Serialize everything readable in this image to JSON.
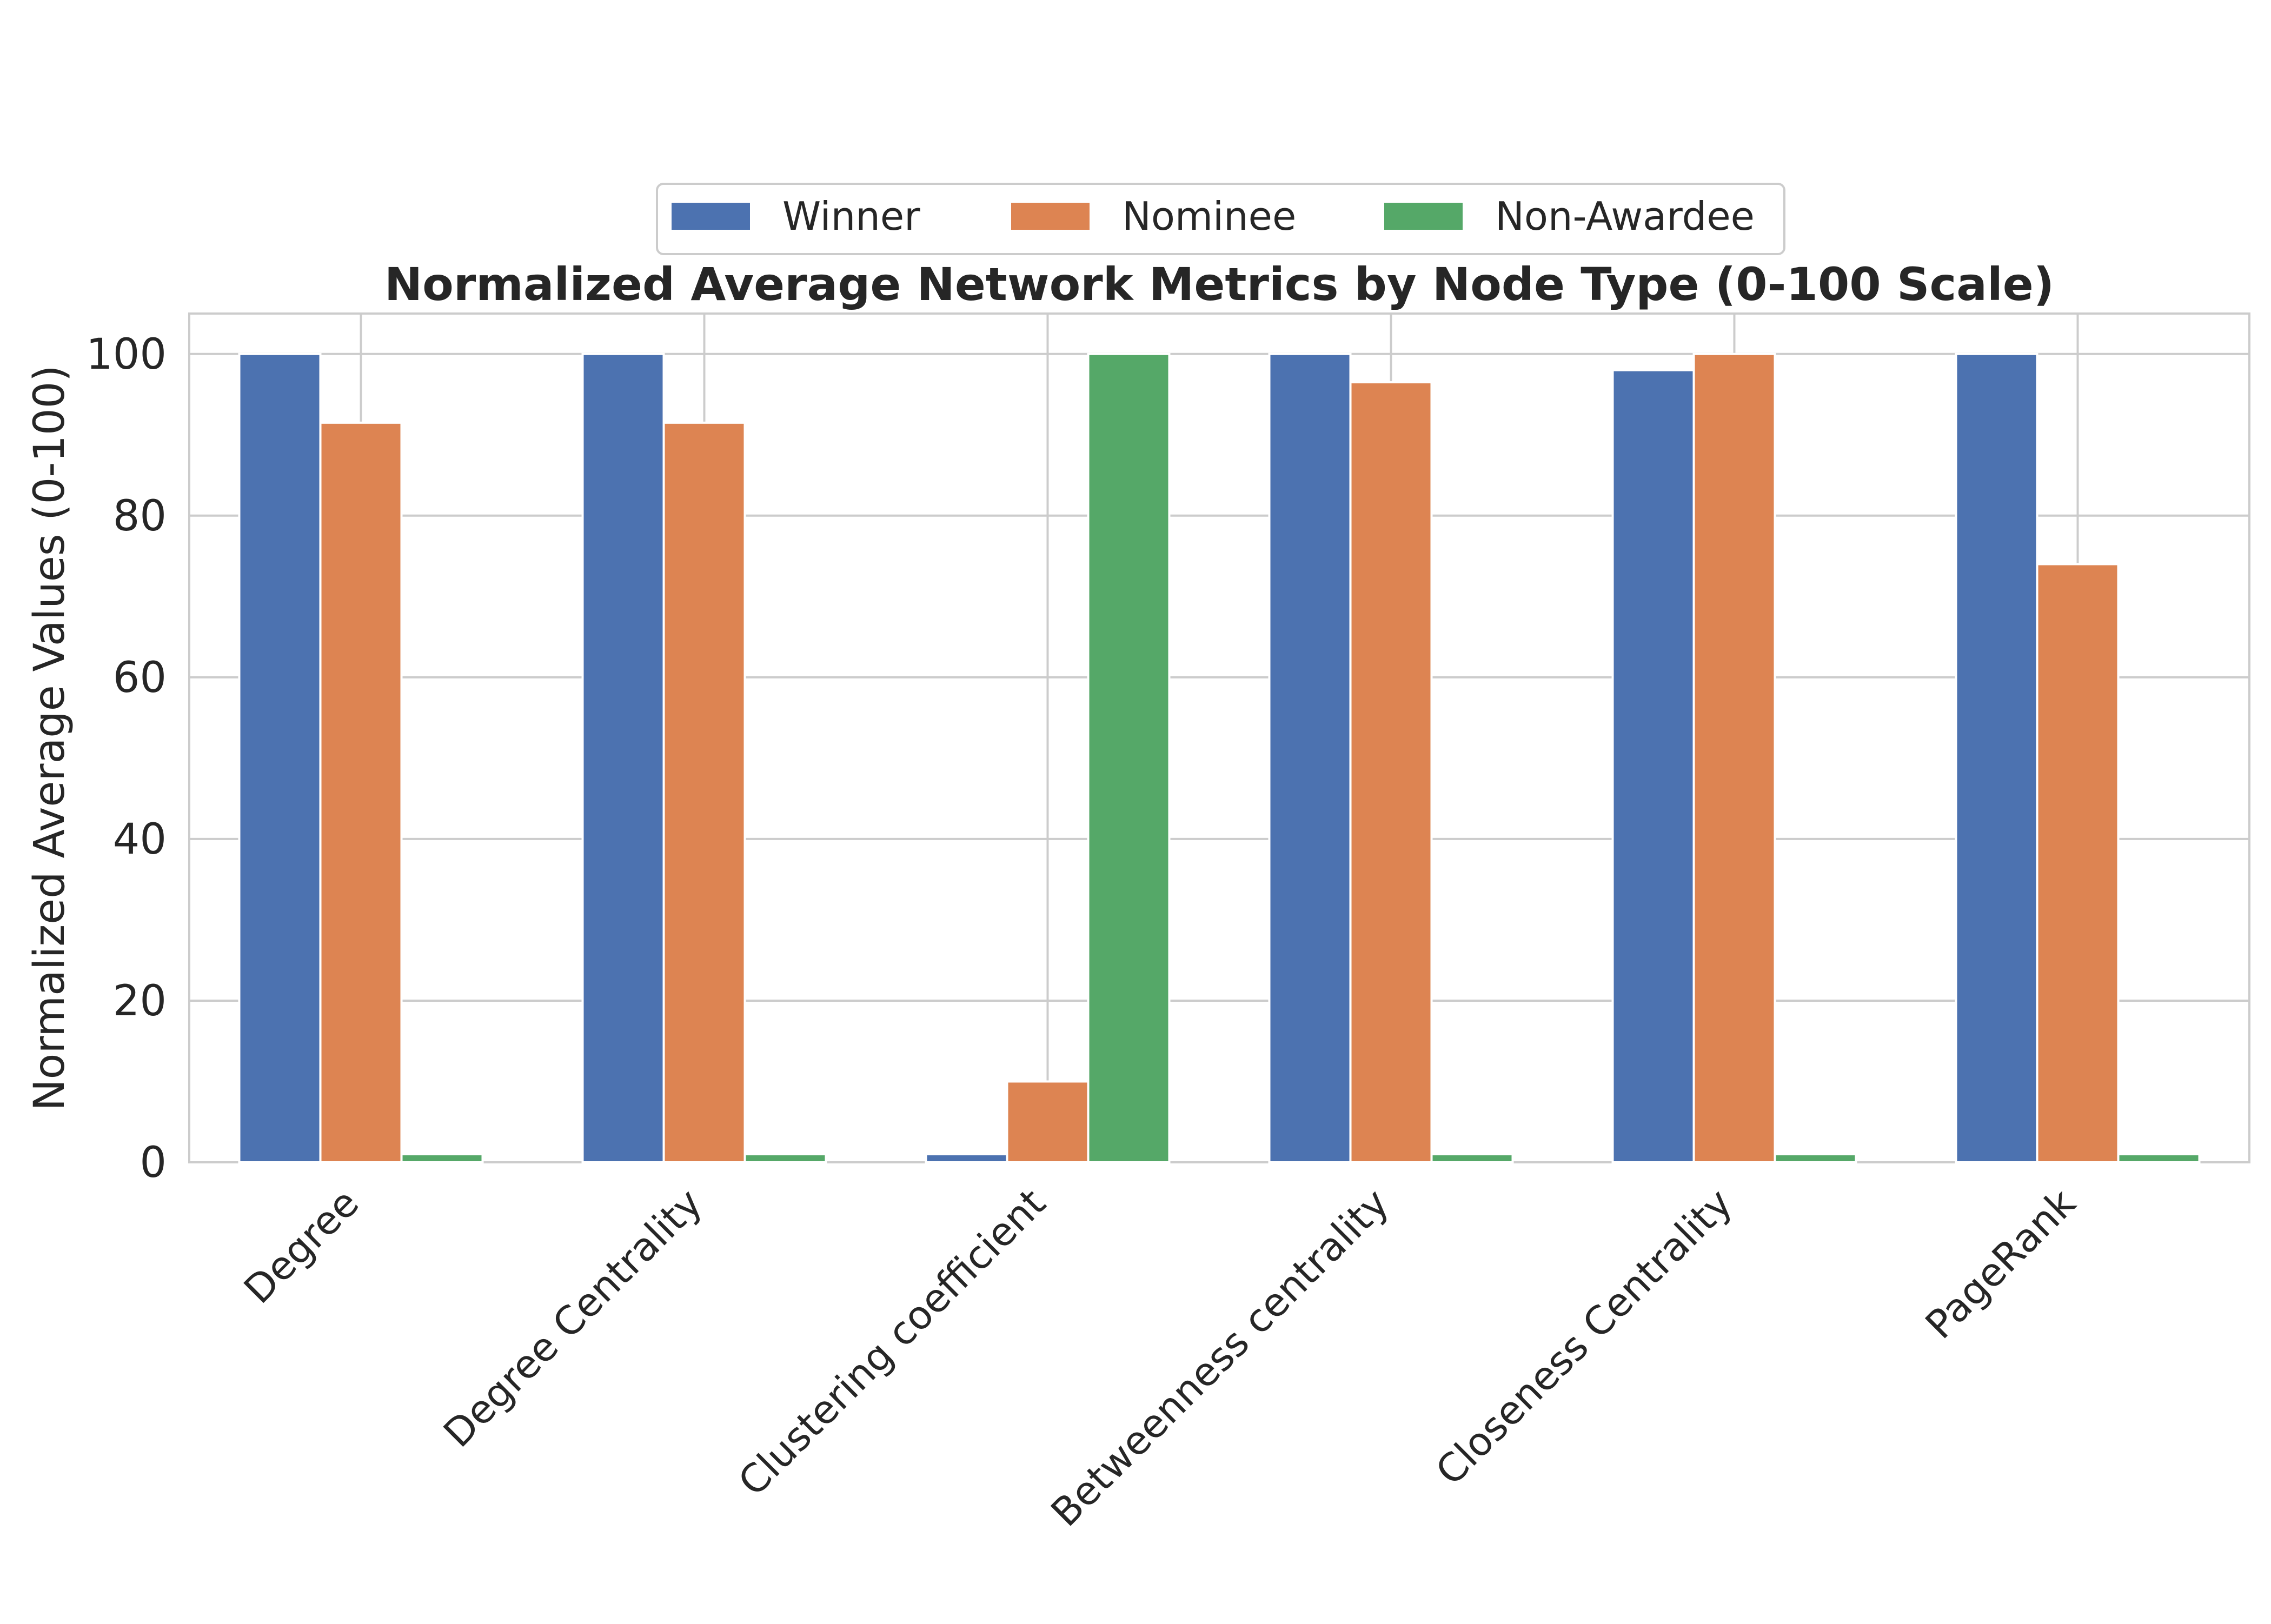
{
  "chart_data": {
    "type": "bar",
    "title": "Normalized Average Network Metrics by Node Type (0-100 Scale)",
    "xlabel": "",
    "ylabel": "Normalized Average Values (0-100)",
    "ylim": [
      0,
      105
    ],
    "yticks": [
      0,
      20,
      40,
      60,
      80,
      100
    ],
    "ytick_labels": [
      "0",
      "20",
      "40",
      "60",
      "80",
      "100"
    ],
    "grid": true,
    "legend_position": "top-center",
    "categories": [
      "Degree",
      "Degree Centrality",
      "Clustering coefficient",
      "Betweenness centrality",
      "Closeness Centrality",
      "PageRank"
    ],
    "series": [
      {
        "name": "Winner",
        "color": "#4c72b0",
        "values": [
          100,
          100,
          1,
          100,
          98,
          100
        ]
      },
      {
        "name": "Nominee",
        "color": "#dd8452",
        "values": [
          91.5,
          91.5,
          10,
          96.5,
          100,
          74
        ]
      },
      {
        "name": "Non-Awardee",
        "color": "#55a868",
        "values": [
          1,
          1,
          100,
          1,
          1,
          1
        ]
      }
    ]
  }
}
